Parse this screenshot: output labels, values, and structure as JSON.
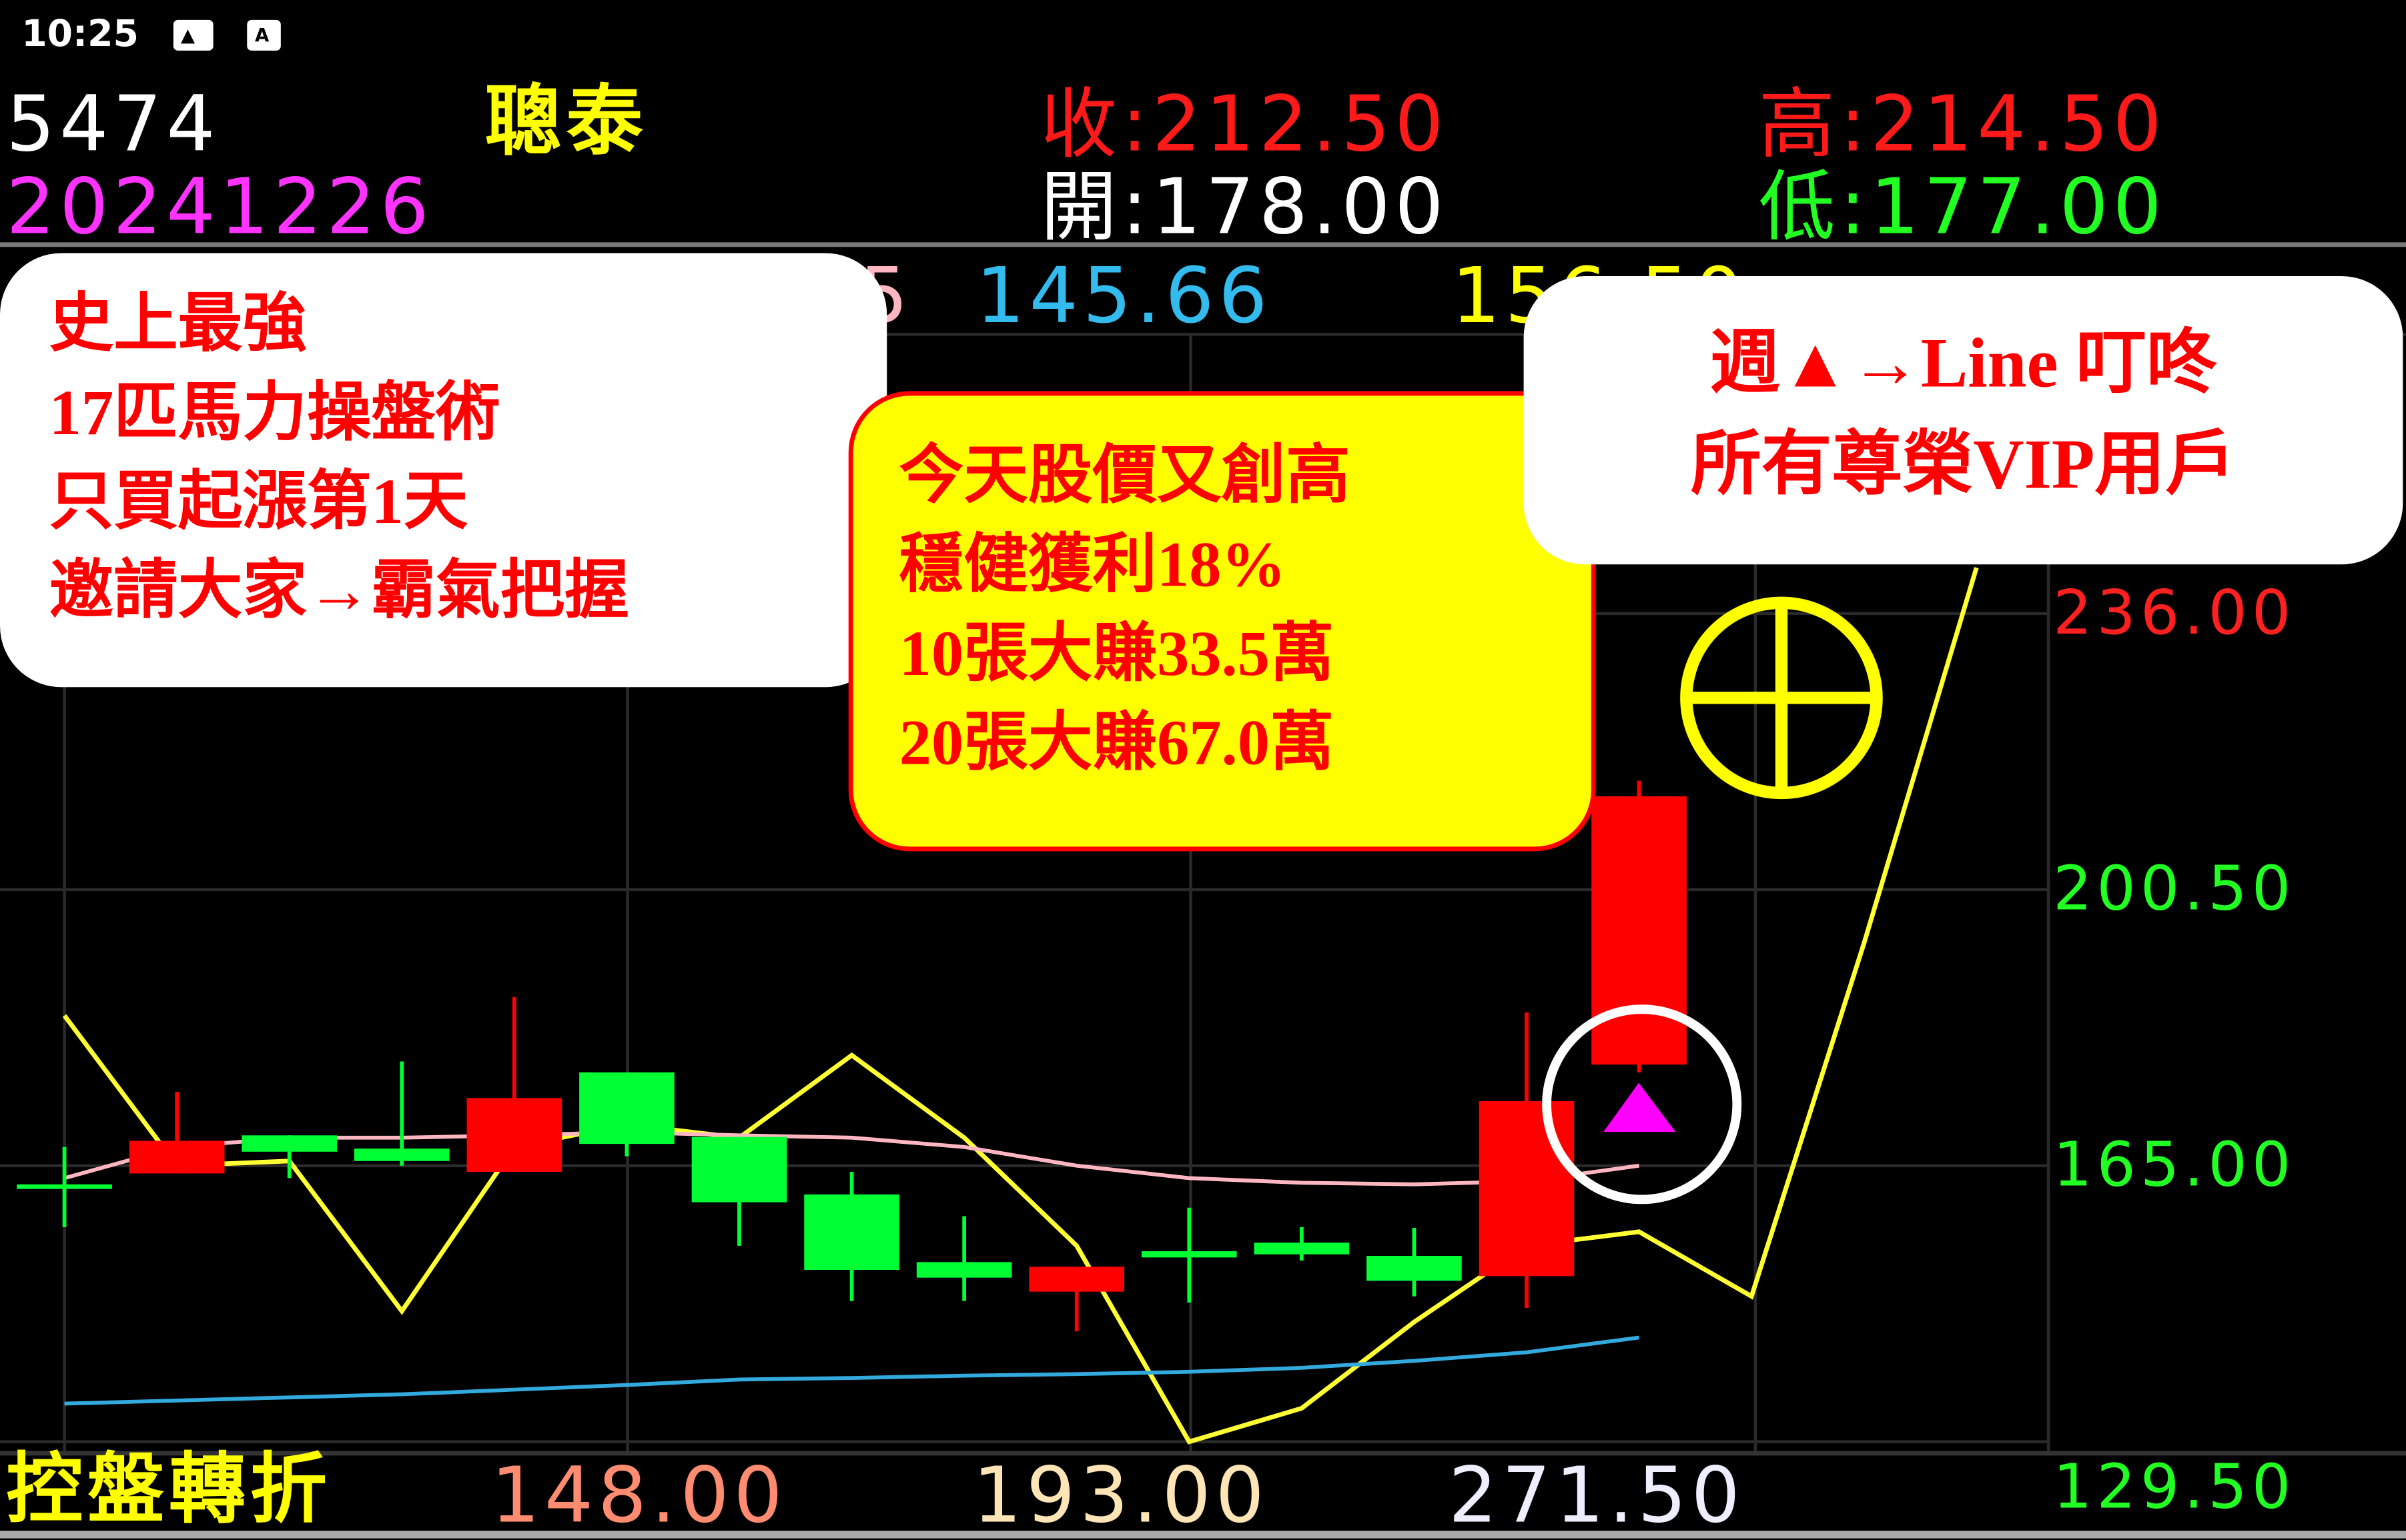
{
  "status_bar": {
    "time": "10:25",
    "icons": [
      "image-icon",
      "font-icon"
    ]
  },
  "header": {
    "code": "5474",
    "name": "聰泰",
    "date": "20241226",
    "close_label": "收:212.50",
    "open_label": "開:178.00",
    "high_label": "高:214.50",
    "low_label": "低:177.00"
  },
  "ma_row": {
    "fragment_pink": "5",
    "value_blue": "145.66",
    "value_yellow": "156.50"
  },
  "bubbles": {
    "left": [
      "史上最強",
      "17匹馬力操盤術",
      "只買起漲第1天",
      "邀請大家→霸氣把握"
    ],
    "middle": [
      "今天股價又創高",
      "穩健獲利18%",
      "10張大賺33.5萬",
      "20張大賺67.0萬"
    ],
    "right": [
      "週▲→Line 叮咚",
      "所有尊榮VIP用戶"
    ]
  },
  "footer": {
    "label": "控盤轉折",
    "values": [
      "148.00",
      "193.00",
      "271.50"
    ],
    "axis_min": "129.50"
  },
  "colors": {
    "up": "#ff0000",
    "down": "#00ff33",
    "ma_short": "#ffff33",
    "ma_mid": "#ffb6c1",
    "ma_long": "#33aadd",
    "signal": "#ff00ff"
  },
  "chart_data": {
    "type": "candlestick",
    "y_ticks": [
      "236.00",
      "200.50",
      "165.00",
      "129.50"
    ],
    "ylim": [
      129.5,
      236
    ],
    "candles": [
      {
        "open": 162.6,
        "close": 162.4,
        "high": 167.4,
        "low": 157.1
      },
      {
        "open": 164.0,
        "close": 168.2,
        "high": 174.5,
        "low": 164.0
      },
      {
        "open": 168.9,
        "close": 166.8,
        "high": 168.9,
        "low": 163.4
      },
      {
        "open": 167.2,
        "close": 165.6,
        "high": 178.4,
        "low": 165.0
      },
      {
        "open": 164.2,
        "close": 173.7,
        "high": 186.7,
        "low": 164.2
      },
      {
        "open": 177.0,
        "close": 167.8,
        "high": 177.0,
        "low": 166.2
      },
      {
        "open": 168.7,
        "close": 160.3,
        "high": 168.7,
        "low": 154.7
      },
      {
        "open": 161.3,
        "close": 151.6,
        "high": 164.2,
        "low": 147.6
      },
      {
        "open": 152.6,
        "close": 150.6,
        "high": 158.5,
        "low": 147.6
      },
      {
        "open": 148.8,
        "close": 152.0,
        "high": 152.0,
        "low": 143.7
      },
      {
        "open": 154.0,
        "close": 153.2,
        "high": 159.6,
        "low": 147.4
      },
      {
        "open": 155.1,
        "close": 153.6,
        "high": 157.1,
        "low": 152.8
      },
      {
        "open": 153.4,
        "close": 150.2,
        "high": 157.0,
        "low": 148.2
      },
      {
        "open": 150.8,
        "close": 173.3,
        "high": 184.7,
        "low": 146.7
      },
      {
        "open": 178.0,
        "close": 212.5,
        "high": 214.5,
        "low": 177.0
      }
    ],
    "series": [
      {
        "values": [
          184.3,
          165.0,
          165.6,
          146.3,
          167.4,
          170.3,
          168.6,
          179.2,
          168.6,
          154.7,
          129.5,
          133.8,
          144.9,
          154.7,
          156.5,
          148.2,
          193.6,
          241.9
        ]
      },
      {
        "values": [
          163.4,
          167.4,
          168.6,
          168.6,
          168.9,
          169.3,
          168.9,
          168.6,
          167.4,
          165.0,
          163.4,
          162.8,
          162.6,
          163.0,
          165.0
        ]
      },
      {
        "values": [
          134.4,
          134.8,
          135.2,
          135.6,
          136.2,
          136.8,
          137.5,
          137.7,
          138.0,
          138.2,
          138.5,
          139.0,
          139.9,
          141.0,
          142.9
        ]
      }
    ]
  }
}
